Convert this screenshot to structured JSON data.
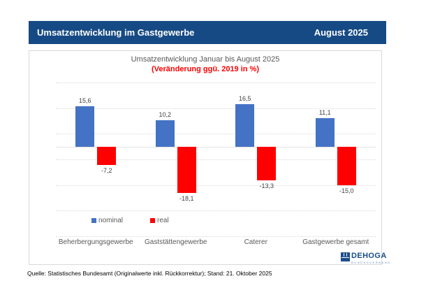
{
  "header": {
    "title": "Umsatzentwicklung im Gastgewerbe",
    "date": "August 2025"
  },
  "chart_data": {
    "type": "bar",
    "title": "Umsatzentwicklung Januar bis August 2025",
    "subtitle": "(Veränderung ggü. 2019 in %)",
    "categories": [
      "Beherbergungsgewerbe",
      "Gaststättengewerbe",
      "Caterer",
      "Gastgewerbe gesamt"
    ],
    "series": [
      {
        "name": "nominal",
        "color": "#4472c4",
        "values": [
          15.6,
          10.2,
          16.5,
          11.1
        ]
      },
      {
        "name": "real",
        "color": "#ff0000",
        "values": [
          -7.2,
          -18.1,
          -13.3,
          -15.0
        ]
      }
    ],
    "ylim": [
      -35,
      25
    ],
    "gridline_step": 10,
    "grid": true,
    "y_axis_labels": false,
    "legend_position": "bottom",
    "value_label_format": "decimal-comma-1"
  },
  "logo": {
    "name": "DEHOGA",
    "subtext": "BUNDESVERBAND"
  },
  "source": "Quelle: Statistisches Bundesamt (Originalwerte inkl. Rückkorrektur); Stand: 21. Oktober 2025",
  "colors": {
    "header_bg": "#164a84",
    "header_text": "#ffffff",
    "bar_nominal": "#4472c4",
    "bar_real": "#ff0000",
    "title_gray": "#595959",
    "subtitle_red": "#ff0000",
    "gridline": "#d9d9d9",
    "panel_border": "#d9d9d9",
    "logo_blue": "#1a4c8b"
  }
}
